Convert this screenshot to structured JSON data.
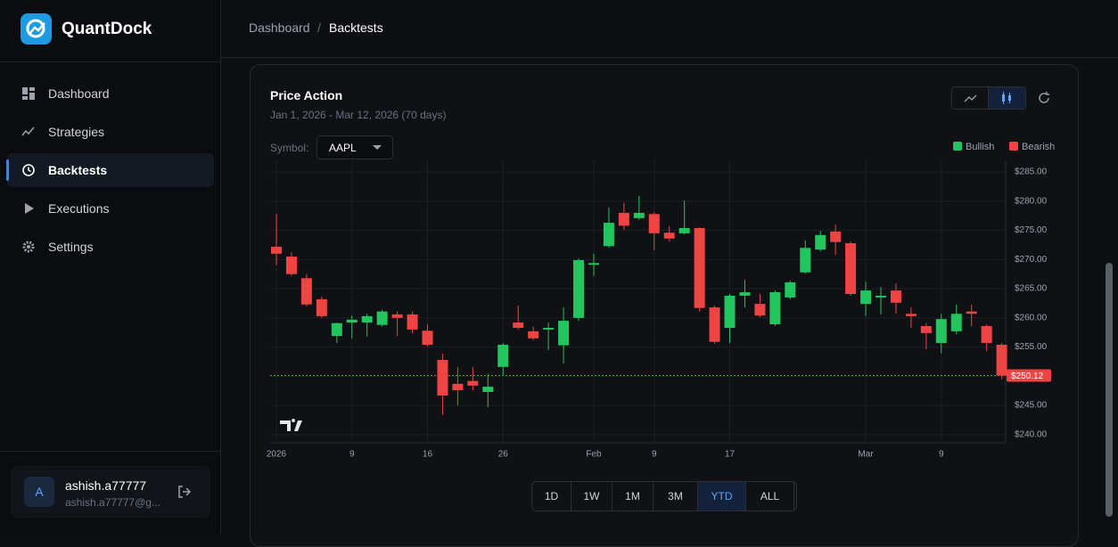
{
  "app": {
    "name": "QuantDock"
  },
  "nav": [
    "Dashboard",
    "Strategies",
    "Backtests",
    "Executions",
    "Settings"
  ],
  "active_nav": "Backtests",
  "breadcrumb": [
    "Dashboard",
    "Backtests"
  ],
  "user": {
    "avatar": "A",
    "name": "ashish.a77777",
    "email": "ashish.a77777@g..."
  },
  "card": {
    "symbol_label": "Symbol:",
    "symbol": "AAPL"
  },
  "ranges": [
    "1D",
    "1W",
    "1M",
    "3M",
    "YTD",
    "ALL"
  ],
  "active_range": "YTD",
  "chart_data": {
    "type": "candlestick",
    "title": "Price Action",
    "subtitle": "Jan 1, 2026 - Mar 12, 2026 (70 days)",
    "categories": [
      "2026",
      null,
      null,
      null,
      null,
      "9",
      null,
      null,
      null,
      null,
      "16",
      null,
      null,
      null,
      null,
      "26",
      null,
      null,
      null,
      null,
      null,
      "Feb",
      null,
      null,
      null,
      "9",
      null,
      null,
      null,
      null,
      "17",
      null,
      null,
      null,
      null,
      null,
      null,
      null,
      null,
      "Mar",
      null,
      null,
      null,
      null,
      "9",
      null,
      null,
      null,
      null
    ],
    "open": [
      272.2,
      270.5,
      266.8,
      263.2,
      256.9,
      259.2,
      259.2,
      258.8,
      260.6,
      260.6,
      257.8,
      252.8,
      248.7,
      249.2,
      247.3,
      251.6,
      259.2,
      257.7,
      258.0,
      255.3,
      260.0,
      269.1,
      272.3,
      278.0,
      277.1,
      277.8,
      274.6,
      274.5,
      275.4,
      261.8,
      258.3,
      263.8,
      262.4,
      258.9,
      263.5,
      267.8,
      271.7,
      274.8,
      272.8,
      262.4,
      263.5,
      264.7,
      260.7,
      258.6,
      255.7,
      257.7,
      261.1,
      258.6,
      255.4
    ],
    "high": [
      277.8,
      271.3,
      267.5,
      263.6,
      259.2,
      260.4,
      260.7,
      261.4,
      261.1,
      261.1,
      258.9,
      253.9,
      251.6,
      251.6,
      250.4,
      255.7,
      262.1,
      258.5,
      259.2,
      261.8,
      270.2,
      271.0,
      278.9,
      279.7,
      280.9,
      278.1,
      275.7,
      280.1,
      275.5,
      262.1,
      264.1,
      266.5,
      264.1,
      264.7,
      266.4,
      273.3,
      274.9,
      276.0,
      273.1,
      266.2,
      265.3,
      265.9,
      261.8,
      259.1,
      260.7,
      262.3,
      262.3,
      258.9,
      255.7
    ],
    "low": [
      269.0,
      267.2,
      262.0,
      260.0,
      255.7,
      256.5,
      256.8,
      258.5,
      256.9,
      257.4,
      255.1,
      243.4,
      245.0,
      247.6,
      244.7,
      250.1,
      258.0,
      256.2,
      254.5,
      252.2,
      259.5,
      267.2,
      272.0,
      275.1,
      276.8,
      271.6,
      273.1,
      274.3,
      261.1,
      255.6,
      255.7,
      261.8,
      260.1,
      258.6,
      263.2,
      267.6,
      271.4,
      270.8,
      263.8,
      260.3,
      260.6,
      260.7,
      258.3,
      254.6,
      253.9,
      257.2,
      258.6,
      254.3,
      249.5
    ],
    "close": [
      271.0,
      267.5,
      262.3,
      260.3,
      259.1,
      259.7,
      260.3,
      261.1,
      260.0,
      258.0,
      255.4,
      246.7,
      247.6,
      248.4,
      248.2,
      255.4,
      258.3,
      256.5,
      258.3,
      259.5,
      269.9,
      269.4,
      276.3,
      275.8,
      278.0,
      274.5,
      273.6,
      275.4,
      261.7,
      255.9,
      263.8,
      264.4,
      260.4,
      264.4,
      266.1,
      272.0,
      274.2,
      273.0,
      264.1,
      264.7,
      263.8,
      262.6,
      260.3,
      257.4,
      259.8,
      260.7,
      260.7,
      255.7,
      250.12
    ],
    "series": [
      {
        "name": "Bullish",
        "color": "#22c55e"
      },
      {
        "name": "Bearish",
        "color": "#ef4444"
      }
    ],
    "ylim": [
      238.6,
      287
    ],
    "yticks": [
      {
        "value": 240,
        "label": "$240.00"
      },
      {
        "value": 245,
        "label": "$245.00"
      },
      {
        "value": 250,
        "label": "$250.00"
      },
      {
        "value": 255,
        "label": "$255.00"
      },
      {
        "value": 260,
        "label": "$260.00"
      },
      {
        "value": 265,
        "label": "$265.00"
      },
      {
        "value": 270,
        "label": "$270.00"
      },
      {
        "value": 275,
        "label": "$275.00"
      },
      {
        "value": 280,
        "label": "$280.00"
      },
      {
        "value": 285,
        "label": "$285.00"
      }
    ],
    "last_price": {
      "value": 250.12,
      "label": "$250.12"
    },
    "grid": true
  }
}
